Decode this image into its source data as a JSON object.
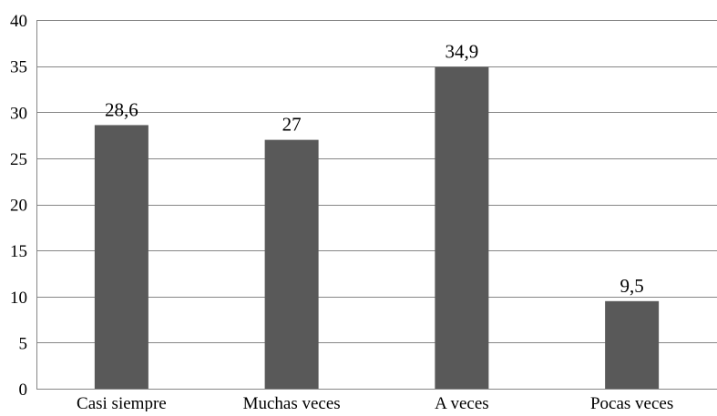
{
  "chart_data": {
    "type": "bar",
    "title": "",
    "xlabel": "",
    "ylabel": "",
    "categories": [
      "Casi siempre",
      "Muchas veces",
      "A veces",
      "Pocas veces"
    ],
    "values": [
      28.6,
      27,
      34.9,
      9.5
    ],
    "value_labels": [
      "28,6",
      "27",
      "34,9",
      "9,5"
    ],
    "ylim": [
      0,
      40
    ],
    "yticks": [
      0,
      5,
      10,
      15,
      20,
      25,
      30,
      35,
      40
    ],
    "ytick_labels": [
      "0",
      "5",
      "10",
      "15",
      "20",
      "25",
      "30",
      "35",
      "40"
    ],
    "grid": true,
    "legend": "none",
    "bar_color": "#595959",
    "grid_color": "#868686"
  }
}
